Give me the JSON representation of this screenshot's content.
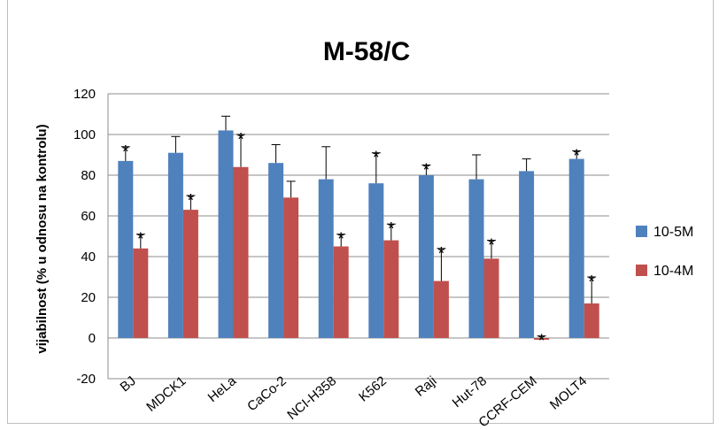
{
  "chart_data": {
    "type": "bar",
    "title": "M-58/C",
    "xlabel": "",
    "ylabel": "vijabilnost (% u odnosu na kontrolu)",
    "ylim": [
      -20,
      120
    ],
    "yticks": [
      -20,
      0,
      20,
      40,
      60,
      80,
      100,
      120
    ],
    "grid": true,
    "legend_position": "right",
    "categories": [
      "BJ",
      "MDCK1",
      "HeLa",
      "CaCo-2",
      "NCI-H358",
      "K562",
      "Raji",
      "Hut-78",
      "CCRF-CEM",
      "MOLT4"
    ],
    "series": [
      {
        "name": "10-5M",
        "color": "#4f81bd",
        "values": [
          87,
          91,
          102,
          86,
          78,
          76,
          80,
          78,
          82,
          88
        ],
        "errors": [
          7,
          8,
          7,
          9,
          16,
          15,
          5,
          12,
          6,
          4
        ],
        "significant": [
          true,
          false,
          false,
          false,
          false,
          true,
          true,
          false,
          false,
          true
        ]
      },
      {
        "name": "10-4M",
        "color": "#c0504d",
        "values": [
          44,
          63,
          84,
          69,
          45,
          48,
          28,
          39,
          0,
          17
        ],
        "errors": [
          7,
          7,
          16,
          8,
          6,
          8,
          16,
          9,
          1,
          13
        ],
        "significant": [
          true,
          true,
          true,
          false,
          true,
          true,
          true,
          true,
          true,
          true
        ]
      }
    ],
    "significance_marker": "*"
  }
}
